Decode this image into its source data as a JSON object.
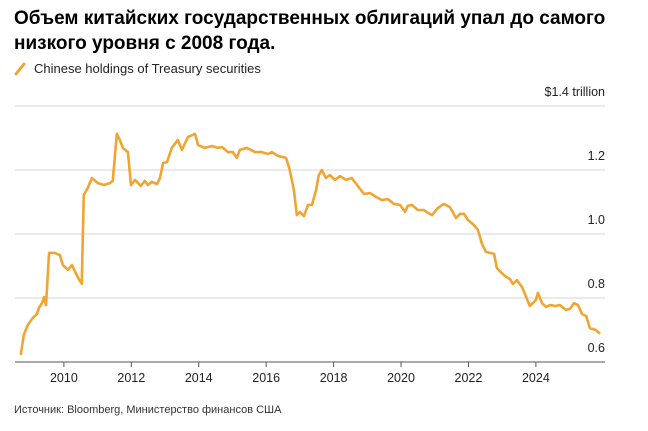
{
  "chart_data": {
    "type": "line",
    "title": "Объем китайских государственных облигаций упал до самого низкого уровня с 2008 года.",
    "source": "Источник: Bloomberg, Министерство финансов США",
    "x": [
      2008.72,
      2008.81,
      2008.93,
      2009.08,
      2009.2,
      2009.26,
      2009.35,
      2009.41,
      2009.47,
      2009.56,
      2009.73,
      2009.88,
      2009.97,
      2010.12,
      2010.24,
      2010.42,
      2010.53,
      2010.59,
      2010.71,
      2010.83,
      2011.01,
      2011.19,
      2011.36,
      2011.45,
      2011.57,
      2011.66,
      2011.75,
      2011.9,
      2011.99,
      2012.11,
      2012.28,
      2012.4,
      2012.49,
      2012.61,
      2012.76,
      2012.85,
      2012.94,
      2013.06,
      2013.2,
      2013.38,
      2013.5,
      2013.68,
      2013.89,
      2013.98,
      2014.18,
      2014.39,
      2014.57,
      2014.69,
      2014.87,
      2015.01,
      2015.13,
      2015.22,
      2015.43,
      2015.67,
      2015.87,
      2016.05,
      2016.17,
      2016.35,
      2016.59,
      2016.7,
      2016.82,
      2016.91,
      2017.0,
      2017.12,
      2017.24,
      2017.36,
      2017.48,
      2017.56,
      2017.65,
      2017.77,
      2017.89,
      2018.04,
      2018.19,
      2018.37,
      2018.54,
      2018.72,
      2018.9,
      2019.08,
      2019.26,
      2019.43,
      2019.61,
      2019.79,
      2019.97,
      2020.12,
      2020.2,
      2020.32,
      2020.5,
      2020.68,
      2020.8,
      2020.92,
      2021.09,
      2021.27,
      2021.45,
      2021.63,
      2021.75,
      2021.87,
      2021.98,
      2022.16,
      2022.28,
      2022.4,
      2022.52,
      2022.64,
      2022.76,
      2022.84,
      2022.93,
      2023.08,
      2023.23,
      2023.32,
      2023.44,
      2023.59,
      2023.7,
      2023.82,
      2023.91,
      2024.0,
      2024.06,
      2024.18,
      2024.3,
      2024.42,
      2024.59,
      2024.71,
      2024.89,
      2025.01,
      2025.13,
      2025.25,
      2025.37,
      2025.49,
      2025.6,
      2025.78,
      2025.9
    ],
    "series": [
      {
        "name": "Chinese holdings of Treasury securities",
        "color": "#f0a532",
        "values": [
          0.622,
          0.684,
          0.716,
          0.738,
          0.75,
          0.769,
          0.784,
          0.803,
          0.778,
          0.941,
          0.941,
          0.934,
          0.903,
          0.888,
          0.903,
          0.863,
          0.844,
          1.122,
          1.144,
          1.175,
          1.159,
          1.153,
          1.159,
          1.166,
          1.313,
          1.294,
          1.269,
          1.256,
          1.153,
          1.169,
          1.15,
          1.166,
          1.153,
          1.163,
          1.156,
          1.175,
          1.222,
          1.225,
          1.269,
          1.294,
          1.263,
          1.303,
          1.313,
          1.278,
          1.269,
          1.275,
          1.269,
          1.272,
          1.256,
          1.256,
          1.238,
          1.263,
          1.269,
          1.256,
          1.256,
          1.25,
          1.256,
          1.244,
          1.238,
          1.2,
          1.138,
          1.059,
          1.069,
          1.056,
          1.091,
          1.091,
          1.138,
          1.184,
          1.2,
          1.175,
          1.184,
          1.169,
          1.181,
          1.169,
          1.175,
          1.15,
          1.125,
          1.128,
          1.116,
          1.106,
          1.109,
          1.094,
          1.091,
          1.069,
          1.088,
          1.091,
          1.075,
          1.075,
          1.066,
          1.059,
          1.081,
          1.094,
          1.084,
          1.05,
          1.063,
          1.063,
          1.044,
          1.028,
          1.013,
          0.969,
          0.944,
          0.941,
          0.938,
          0.894,
          0.884,
          0.869,
          0.859,
          0.844,
          0.856,
          0.834,
          0.806,
          0.775,
          0.784,
          0.794,
          0.816,
          0.784,
          0.772,
          0.778,
          0.775,
          0.778,
          0.763,
          0.766,
          0.784,
          0.778,
          0.75,
          0.744,
          0.706,
          0.7,
          0.688
        ]
      }
    ],
    "xlim": [
      2008.55,
      2026.05
    ],
    "xticks": [
      2010,
      2012,
      2014,
      2016,
      2018,
      2020,
      2022,
      2024
    ],
    "ylim": [
      0.6,
      1.4
    ],
    "yticks": [
      0.6,
      0.8,
      {
        "value": 1,
        "label": "1.0"
      },
      1.2,
      {
        "value": 1.4,
        "label": "$1.4 trillion"
      }
    ],
    "grid": true
  }
}
